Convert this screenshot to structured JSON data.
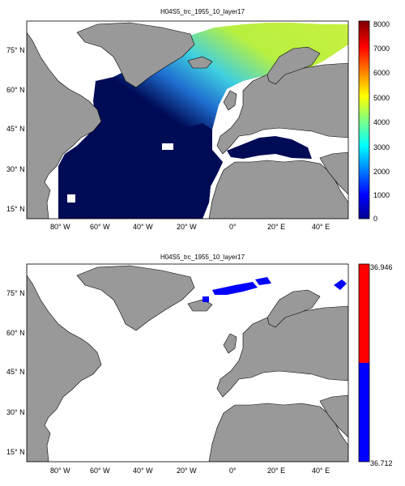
{
  "maps": [
    {
      "title": "H04S5_trc_1955_10_layer17",
      "colorbar": {
        "type": "jet",
        "ticks": [
          "8000",
          "7000",
          "6000",
          "5000",
          "4000",
          "3000",
          "2000",
          "1000",
          "0"
        ],
        "min": 0,
        "max": 8000
      },
      "y_ticks": [
        "75° N",
        "60° N",
        "45° N",
        "30° N",
        "15° N"
      ],
      "x_ticks": [
        "80° W",
        "60° W",
        "40° W",
        "20° W",
        "0°",
        "20° E",
        "40° E"
      ]
    },
    {
      "title": "H04S5_trc_1955_10_layer17",
      "colorbar": {
        "type": "two-tone",
        "top_label": "36.946",
        "bottom_label": "36.712",
        "colors": [
          "#ff0000",
          "#0000ff"
        ]
      },
      "y_ticks": [
        "75° N",
        "60° N",
        "45° N",
        "30° N",
        "15° N"
      ],
      "x_ticks": [
        "80° W",
        "60° W",
        "40° W",
        "20° W",
        "0°",
        "20° E",
        "40° E"
      ]
    }
  ],
  "colors": {
    "land": "#999999",
    "ocean_deep": "#000b55",
    "ocean_mid": "#1f6fd0",
    "ocean_high": "#b8f040",
    "blue_patch": "#0000ff"
  }
}
